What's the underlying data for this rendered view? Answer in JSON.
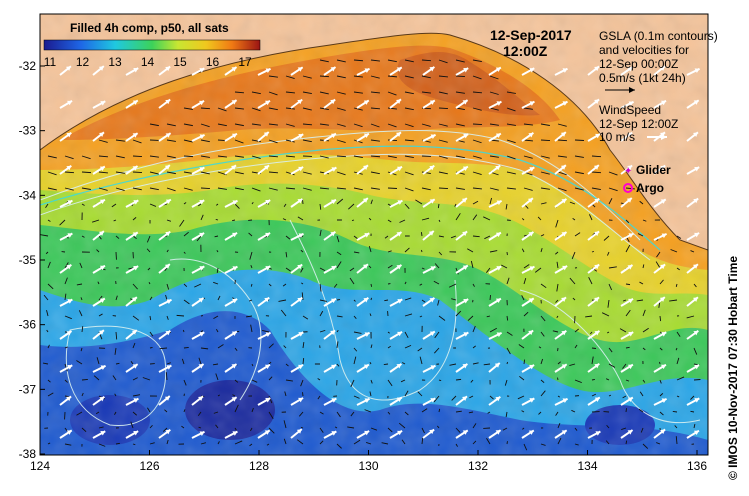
{
  "colorbar": {
    "title": "Filled 4h comp, p50, all sats",
    "ticks": [
      "11",
      "12",
      "13",
      "14",
      "15",
      "16",
      "17"
    ]
  },
  "date": "12-Sep-2017",
  "time": "12:00Z",
  "gsla_legend": {
    "line1": "GSLA (0.1m contours)",
    "line2": "and velocities for",
    "line3": "12-Sep 00:00Z",
    "line4": "0.5m/s (1kt 24h)"
  },
  "wind_legend": {
    "line1": "WindSpeed",
    "line2": "12-Sep 12:00Z",
    "line3": "10 m/s"
  },
  "markers": {
    "glider": "Glider",
    "argo": "Argo"
  },
  "credit": "© IMOS 10-Nov-2017 07:30 Hobart Time",
  "axes": {
    "x_ticks": [
      "124",
      "126",
      "128",
      "130",
      "132",
      "134",
      "136"
    ],
    "y_ticks": [
      "-32",
      "-33",
      "-34",
      "-35",
      "-36",
      "-37",
      "-38"
    ]
  },
  "colors": {
    "land": "#f5c49a",
    "sea_warm": "#f08a1c",
    "sea_mid": "#8ccc3c",
    "sea_cool": "#2a90e8",
    "sea_cold": "#1a2ab0"
  }
}
